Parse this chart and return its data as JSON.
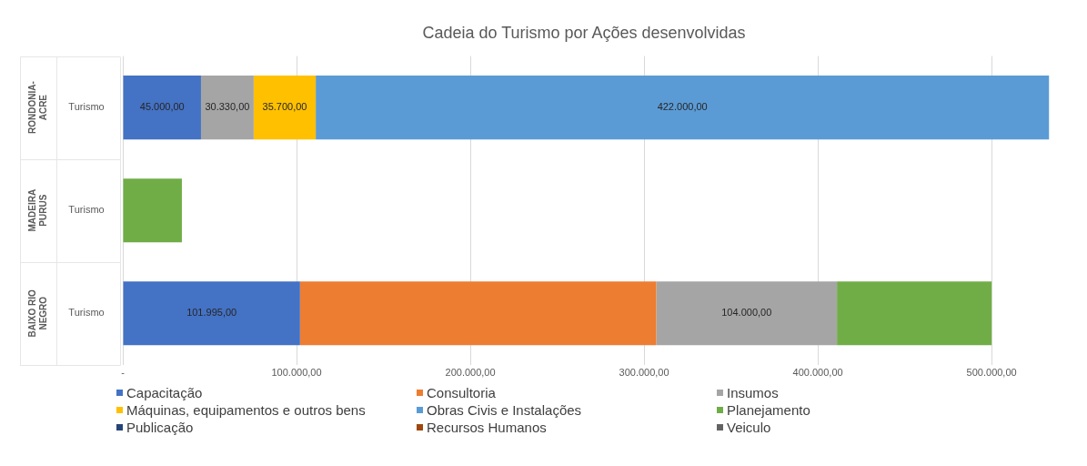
{
  "chart_data": {
    "type": "bar",
    "orientation": "horizontal",
    "stacked": true,
    "title": "Cadeia do Turismo por Ações desenvolvidas",
    "categories": [
      "Turismo",
      "Turismo",
      "Turismo"
    ],
    "annotations": [
      "RONDONIA-ACRE",
      "MADEIRA PURUS",
      "BAIXO RIO NEGRO"
    ],
    "series": [
      {
        "name": "Capacitação",
        "color": "#4472c4",
        "values": [
          45000,
          null,
          101995
        ],
        "value_labels": [
          "45.000,00",
          null,
          "101.995,00"
        ]
      },
      {
        "name": "Consultoria",
        "color": "#ed7d31",
        "values": [
          null,
          null,
          205000
        ]
      },
      {
        "name": "Insumos",
        "color": "#a5a5a5",
        "values": [
          30330,
          null,
          104000
        ],
        "value_labels": [
          "30.330,00",
          null,
          "104.000,00"
        ]
      },
      {
        "name": "Máquinas, equipamentos e outros bens",
        "color": "#ffc000",
        "values": [
          35700,
          null,
          null
        ],
        "value_labels": [
          "35.700,00",
          null,
          null
        ]
      },
      {
        "name": "Obras Civis e Instalações",
        "color": "#5b9bd5",
        "values": [
          422000,
          null,
          null
        ],
        "value_labels": [
          "422.000,00",
          null,
          null
        ]
      },
      {
        "name": "Planejamento",
        "color": "#70ad47",
        "values": [
          null,
          34000,
          89000
        ]
      },
      {
        "name": "Publicação",
        "color": "#264478",
        "values": [
          null,
          null,
          null
        ]
      },
      {
        "name": "Recursos Humanos",
        "color": "#9e480e",
        "values": [
          null,
          null,
          null
        ]
      },
      {
        "name": "Veiculo",
        "color": "#636363",
        "values": [
          null,
          null,
          null
        ]
      }
    ],
    "xlim": [
      0,
      535000
    ],
    "xticks": [
      {
        "value": 0,
        "label": "-"
      },
      {
        "value": 100000,
        "label": "100.000,00"
      },
      {
        "value": 200000,
        "label": "200.000,00"
      },
      {
        "value": 300000,
        "label": "300.000,00"
      },
      {
        "value": 400000,
        "label": "400.000,00"
      },
      {
        "value": 500000,
        "label": "500.000,00"
      }
    ],
    "grid": "x",
    "legend": "bottom"
  }
}
